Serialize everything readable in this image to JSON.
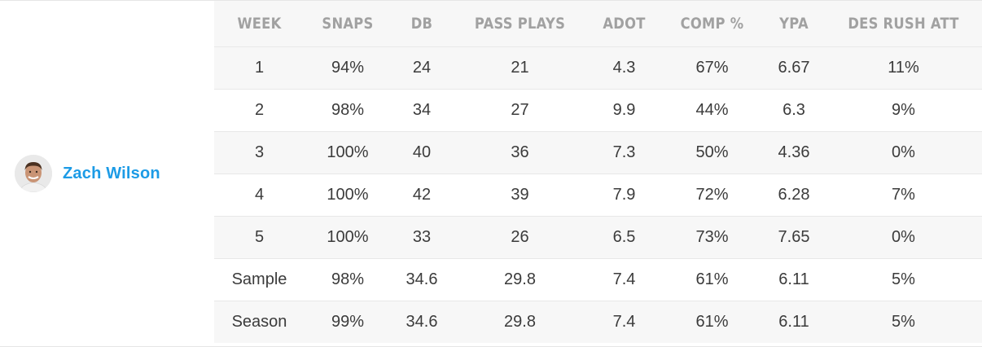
{
  "player": {
    "name": "Zach Wilson",
    "avatar_icon": "player-headshot-icon"
  },
  "table": {
    "columns": [
      "WEEK",
      "SNAPS",
      "DB",
      "PASS PLAYS",
      "ADOT",
      "COMP %",
      "YPA",
      "DES RUSH ATT"
    ],
    "rows": [
      [
        "1",
        "94%",
        "24",
        "21",
        "4.3",
        "67%",
        "6.67",
        "11%"
      ],
      [
        "2",
        "98%",
        "34",
        "27",
        "9.9",
        "44%",
        "6.3",
        "9%"
      ],
      [
        "3",
        "100%",
        "40",
        "36",
        "7.3",
        "50%",
        "4.36",
        "0%"
      ],
      [
        "4",
        "100%",
        "42",
        "39",
        "7.9",
        "72%",
        "6.28",
        "7%"
      ],
      [
        "5",
        "100%",
        "33",
        "26",
        "6.5",
        "73%",
        "7.65",
        "0%"
      ],
      [
        "Sample",
        "98%",
        "34.6",
        "29.8",
        "7.4",
        "61%",
        "6.11",
        "5%"
      ],
      [
        "Season",
        "99%",
        "34.6",
        "29.8",
        "7.4",
        "61%",
        "6.11",
        "5%"
      ]
    ]
  },
  "colors": {
    "link": "#1c9be6",
    "header_text": "#a1a1a1",
    "cell_text": "#3b3b3b",
    "row_stripe": "#f7f7f7"
  }
}
